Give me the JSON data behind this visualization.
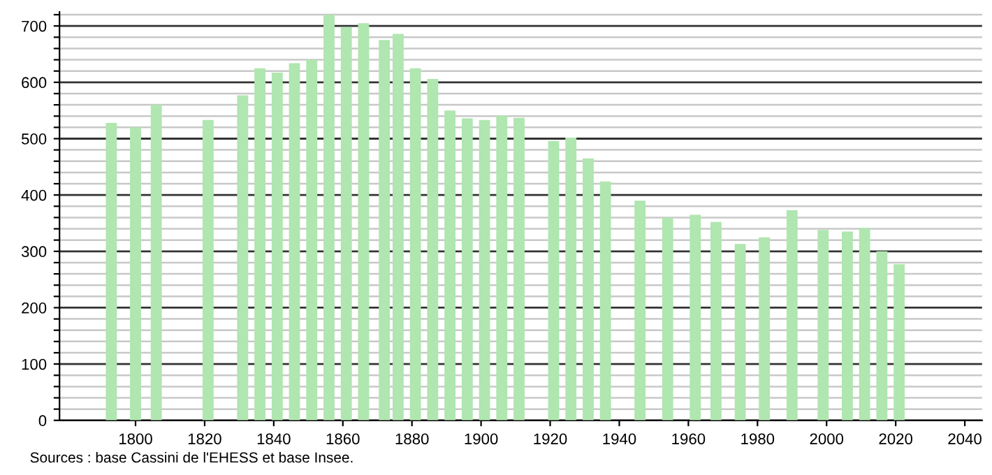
{
  "chart_data": {
    "type": "bar",
    "x": [
      1793,
      1800,
      1806,
      1821,
      1831,
      1836,
      1841,
      1846,
      1851,
      1856,
      1861,
      1866,
      1872,
      1876,
      1881,
      1886,
      1891,
      1896,
      1901,
      1906,
      1911,
      1921,
      1926,
      1931,
      1936,
      1946,
      1954,
      1962,
      1968,
      1975,
      1982,
      1990,
      1999,
      2006,
      2011,
      2016,
      2021
    ],
    "values": [
      528,
      520,
      560,
      533,
      577,
      625,
      617,
      634,
      640,
      720,
      698,
      705,
      675,
      686,
      625,
      606,
      550,
      536,
      533,
      541,
      537,
      496,
      502,
      465,
      424,
      390,
      360,
      365,
      352,
      313,
      325,
      373,
      338,
      335,
      342,
      300,
      277
    ],
    "color": "#b0e6b0",
    "xlim": [
      1778,
      2045
    ],
    "xticks": [
      1800,
      1820,
      1840,
      1860,
      1880,
      1900,
      1920,
      1940,
      1960,
      1980,
      2000,
      2020,
      2040
    ],
    "ylim": [
      0,
      725
    ],
    "yticks": [
      0,
      {
        "value": 20,
        "label": null
      },
      {
        "value": 40,
        "label": null
      },
      {
        "value": 60,
        "label": null
      },
      {
        "value": 80,
        "label": null
      },
      100,
      {
        "value": 120,
        "label": null
      },
      {
        "value": 140,
        "label": null
      },
      {
        "value": 160,
        "label": null
      },
      {
        "value": 180,
        "label": null
      },
      200,
      {
        "value": 220,
        "label": null
      },
      {
        "value": 240,
        "label": null
      },
      {
        "value": 260,
        "label": null
      },
      {
        "value": 280,
        "label": null
      },
      300,
      {
        "value": 320,
        "label": null
      },
      {
        "value": 340,
        "label": null
      },
      {
        "value": 360,
        "label": null
      },
      {
        "value": 380,
        "label": null
      },
      400,
      {
        "value": 420,
        "label": null
      },
      {
        "value": 440,
        "label": null
      },
      {
        "value": 460,
        "label": null
      },
      {
        "value": 480,
        "label": null
      },
      500,
      {
        "value": 520,
        "label": null
      },
      {
        "value": 540,
        "label": null
      },
      {
        "value": 560,
        "label": null
      },
      {
        "value": 580,
        "label": null
      },
      600,
      {
        "value": 620,
        "label": null
      },
      {
        "value": 640,
        "label": null
      },
      {
        "value": 660,
        "label": null
      },
      {
        "value": 680,
        "label": null
      },
      700,
      {
        "value": 720,
        "label": null
      }
    ],
    "grid": "y",
    "annotations": [
      "Sources : base Cassini de l'EHESS et base Insee."
    ]
  }
}
